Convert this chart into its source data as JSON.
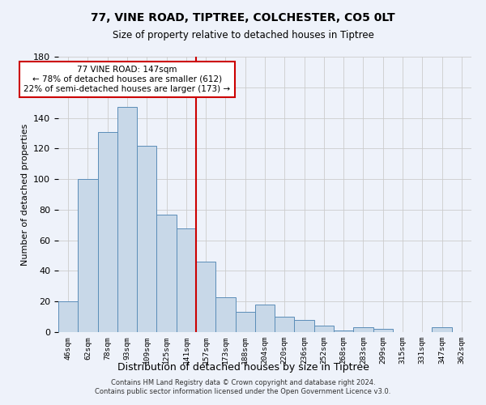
{
  "title_line1": "77, VINE ROAD, TIPTREE, COLCHESTER, CO5 0LT",
  "title_line2": "Size of property relative to detached houses in Tiptree",
  "xlabel": "Distribution of detached houses by size in Tiptree",
  "ylabel": "Number of detached properties",
  "categories": [
    "46sqm",
    "62sqm",
    "78sqm",
    "93sqm",
    "109sqm",
    "125sqm",
    "141sqm",
    "157sqm",
    "173sqm",
    "188sqm",
    "204sqm",
    "220sqm",
    "236sqm",
    "252sqm",
    "268sqm",
    "283sqm",
    "299sqm",
    "315sqm",
    "331sqm",
    "347sqm",
    "362sqm"
  ],
  "values": [
    20,
    100,
    131,
    147,
    122,
    77,
    68,
    46,
    23,
    13,
    18,
    10,
    8,
    4,
    1,
    3,
    2,
    0,
    0,
    3,
    0
  ],
  "bar_color": "#c8d8e8",
  "bar_edge_color": "#5b8db8",
  "vline_x_index": 6.5,
  "vline_color": "#cc0000",
  "annotation_label": "77 VINE ROAD: 147sqm",
  "annotation_line1": "← 78% of detached houses are smaller (612)",
  "annotation_line2": "22% of semi-detached houses are larger (173) →",
  "annotation_box_color": "#ffffff",
  "annotation_box_edge": "#cc0000",
  "grid_color": "#cccccc",
  "background_color": "#eef2fa",
  "ylim": [
    0,
    180
  ],
  "yticks": [
    0,
    20,
    40,
    60,
    80,
    100,
    120,
    140,
    160,
    180
  ],
  "footer_line1": "Contains HM Land Registry data © Crown copyright and database right 2024.",
  "footer_line2": "Contains public sector information licensed under the Open Government Licence v3.0."
}
